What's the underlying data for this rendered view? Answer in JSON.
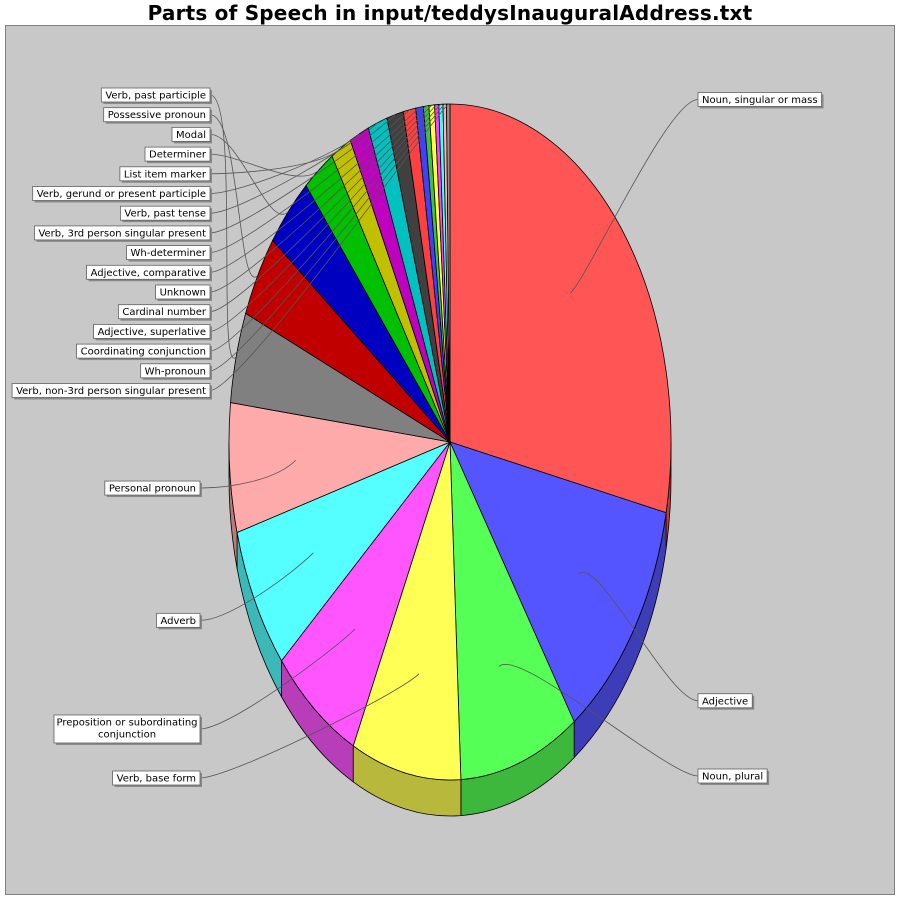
{
  "chart_data": {
    "type": "pie",
    "title": "Parts of Speech in input/teddysInauguralAddress.txt",
    "slices": [
      {
        "label": "Noun, singular or mass",
        "value": 28.0,
        "color": "#ff5555"
      },
      {
        "label": "Adjective",
        "value": 12.0,
        "color": "#5555ff"
      },
      {
        "label": "Noun, plural",
        "value": 8.6,
        "color": "#55ff55"
      },
      {
        "label": "Verb, base form",
        "value": 7.9,
        "color": "#ffff55"
      },
      {
        "label": "Preposition or subordinating conjunction",
        "value": 6.5,
        "color": "#ff55ff"
      },
      {
        "label": "Adverb",
        "value": 6.8,
        "color": "#55ffff"
      },
      {
        "label": "Personal pronoun",
        "value": 6.1,
        "color": "#ffaaaa"
      },
      {
        "label": "Verb, past participle",
        "value": 4.3,
        "color": "#808080"
      },
      {
        "label": "Possessive pronoun",
        "value": 3.9,
        "color": "#c00000"
      },
      {
        "label": "Modal",
        "value": 3.5,
        "color": "#0000c0"
      },
      {
        "label": "Determiner",
        "value": 2.3,
        "color": "#00c000"
      },
      {
        "label": "List item marker",
        "value": 1.5,
        "color": "#c0c000"
      },
      {
        "label": "Verb, gerund or present participle",
        "value": 1.4,
        "color": "#c000c0"
      },
      {
        "label": "Verb, past tense",
        "value": 1.4,
        "color": "#00c0c0"
      },
      {
        "label": "Verb, 3rd person singular present",
        "value": 1.2,
        "color": "#404040"
      },
      {
        "label": "Wh-determiner",
        "value": 0.9,
        "color": "#ff4040"
      },
      {
        "label": "Adjective, comparative",
        "value": 0.55,
        "color": "#4040ff"
      },
      {
        "label": "Unknown",
        "value": 0.4,
        "color": "#40c040"
      },
      {
        "label": "Cardinal number",
        "value": 0.4,
        "color": "#ffff40"
      },
      {
        "label": "Adjective, superlative",
        "value": 0.3,
        "color": "#ff40ff"
      },
      {
        "label": "Coordinating conjunction",
        "value": 0.3,
        "color": "#40ffff"
      },
      {
        "label": "Wh-pronoun",
        "value": 0.25,
        "color": "#ffb0b0"
      },
      {
        "label": "Verb, non-3rd person singular present",
        "value": 0.25,
        "color": "#909090"
      }
    ]
  }
}
